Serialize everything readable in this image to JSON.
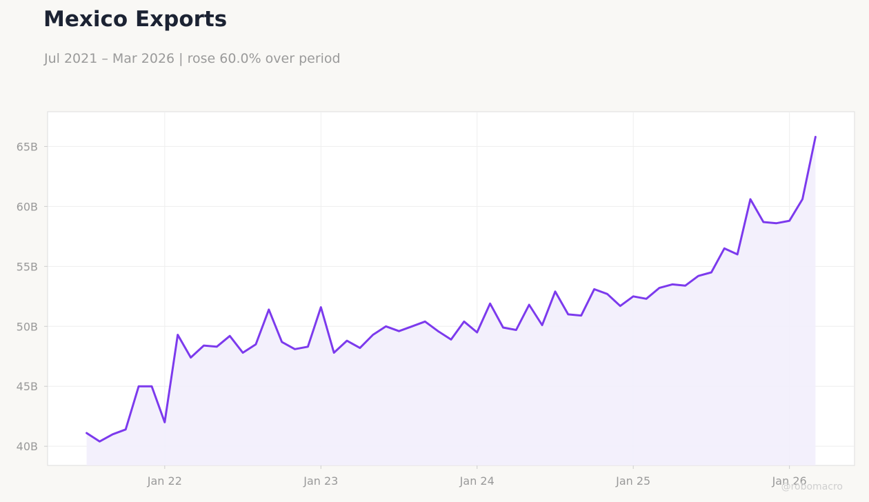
{
  "header": {
    "title": "Mexico Exports",
    "subtitle": "Jul 2021 – Mar 2026 | rose 60.0% over period"
  },
  "credit": "@robomacro",
  "colors": {
    "line": "#7c3aed",
    "fill": "#f2eefc",
    "background": "#f9f8f5",
    "plot_background": "#ffffff",
    "grid": "#eeeeee",
    "tick_text": "#999999",
    "title": "#1c2333"
  },
  "chart_data": {
    "type": "area",
    "title": "Mexico Exports",
    "subtitle": "Jul 2021 – Mar 2026 | rose 60.0% over period",
    "xlabel": "",
    "ylabel": "",
    "grid": true,
    "legend": "none",
    "x_ticks": [
      {
        "label": "Jan 22",
        "date": "2022-01"
      },
      {
        "label": "Jan 23",
        "date": "2023-01"
      },
      {
        "label": "Jan 24",
        "date": "2024-01"
      },
      {
        "label": "Jan 25",
        "date": "2025-01"
      },
      {
        "label": "Jan 26",
        "date": "2026-01"
      }
    ],
    "y_ticks": [
      {
        "label": "40B",
        "value": 40
      },
      {
        "label": "45B",
        "value": 45
      },
      {
        "label": "50B",
        "value": 50
      },
      {
        "label": "55B",
        "value": 55
      },
      {
        "label": "60B",
        "value": 60
      },
      {
        "label": "65B",
        "value": 65
      }
    ],
    "ylim": [
      38.4,
      67.9
    ],
    "xlim": [
      "2021-04",
      "2026-06"
    ],
    "unit": "B",
    "x": [
      "2021-07",
      "2021-08",
      "2021-09",
      "2021-10",
      "2021-11",
      "2021-12",
      "2022-01",
      "2022-02",
      "2022-03",
      "2022-04",
      "2022-05",
      "2022-06",
      "2022-07",
      "2022-08",
      "2022-09",
      "2022-10",
      "2022-11",
      "2022-12",
      "2023-01",
      "2023-02",
      "2023-03",
      "2023-04",
      "2023-05",
      "2023-06",
      "2023-07",
      "2023-08",
      "2023-09",
      "2023-10",
      "2023-11",
      "2023-12",
      "2024-01",
      "2024-02",
      "2024-03",
      "2024-04",
      "2024-05",
      "2024-06",
      "2024-07",
      "2024-08",
      "2024-09",
      "2024-10",
      "2024-11",
      "2024-12",
      "2025-01",
      "2025-02",
      "2025-03",
      "2025-04",
      "2025-05",
      "2025-06",
      "2025-07",
      "2025-08",
      "2025-09",
      "2025-10",
      "2025-11",
      "2025-12",
      "2026-01",
      "2026-02",
      "2026-03"
    ],
    "series": [
      {
        "values": [
          41.1,
          40.4,
          41.0,
          41.4,
          45.0,
          45.0,
          42.0,
          49.3,
          47.4,
          48.4,
          48.3,
          49.2,
          47.8,
          48.5,
          51.4,
          48.7,
          48.1,
          48.3,
          51.6,
          47.8,
          48.8,
          48.2,
          49.3,
          50.0,
          49.6,
          50.0,
          50.4,
          49.6,
          48.9,
          50.4,
          49.5,
          51.9,
          49.9,
          49.7,
          51.8,
          50.1,
          52.9,
          51.0,
          50.9,
          53.1,
          52.7,
          51.7,
          52.5,
          52.3,
          53.2,
          53.5,
          53.4,
          54.2,
          54.5,
          56.5,
          56.0,
          60.6,
          58.7,
          58.6,
          58.8,
          60.6,
          65.8
        ]
      }
    ]
  }
}
